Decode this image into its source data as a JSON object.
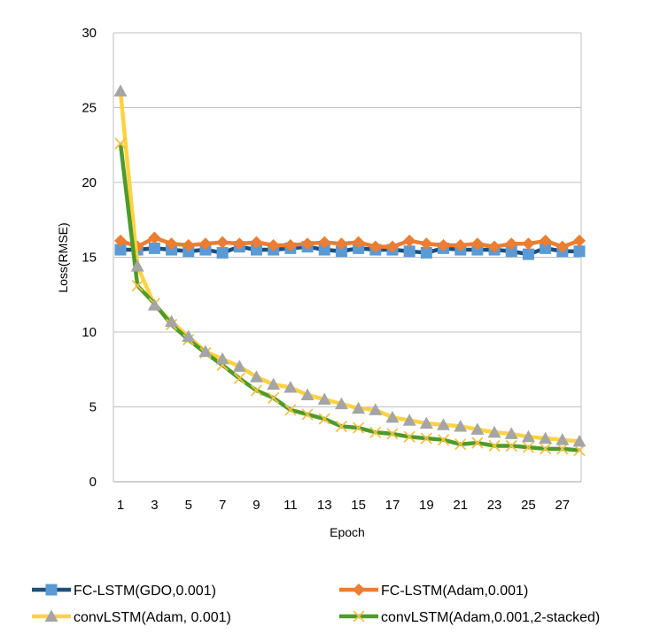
{
  "chart_data": {
    "type": "line",
    "title": "",
    "xlabel": "Epoch",
    "ylabel": "Loss(RMSE)",
    "ylim": [
      0,
      30
    ],
    "yticks": [
      0,
      5,
      10,
      15,
      20,
      25,
      30
    ],
    "xlim": [
      1,
      28
    ],
    "xtick_labels": [
      "1",
      "3",
      "5",
      "7",
      "9",
      "11",
      "13",
      "15",
      "17",
      "19",
      "21",
      "23",
      "25",
      "27"
    ],
    "grid": "horizontal",
    "legend_position": "bottom",
    "colors": {
      "fc_gdo_line": "#1f4e79",
      "fc_gdo_marker": "#5b9bd5",
      "fc_adam": "#ed7d31",
      "conv_adam_line": "#ffd23f",
      "conv_adam_marker": "#a5a5a5",
      "conv_stacked_line": "#4e9a2a",
      "conv_stacked_marker": "#f5c242"
    },
    "series": [
      {
        "name": "FC-LSTM(GDO,0.001)",
        "marker": "square",
        "values": [
          15.5,
          15.5,
          15.6,
          15.5,
          15.4,
          15.5,
          15.3,
          15.7,
          15.5,
          15.5,
          15.6,
          15.7,
          15.5,
          15.4,
          15.6,
          15.5,
          15.5,
          15.4,
          15.3,
          15.6,
          15.5,
          15.5,
          15.5,
          15.4,
          15.2,
          15.6,
          15.4,
          15.4
        ]
      },
      {
        "name": "FC-LSTM(Adam,0.001)",
        "marker": "diamond",
        "values": [
          16.1,
          15.7,
          16.3,
          15.9,
          15.8,
          15.9,
          16.0,
          15.9,
          16.0,
          15.8,
          15.8,
          15.9,
          16.0,
          15.9,
          16.0,
          15.7,
          15.7,
          16.1,
          15.9,
          15.8,
          15.8,
          15.9,
          15.7,
          15.9,
          15.9,
          16.1,
          15.7,
          16.1
        ]
      },
      {
        "name": "convLSTM(Adam, 0.001)",
        "marker": "triangle",
        "values": [
          26.1,
          14.4,
          11.8,
          10.7,
          9.7,
          8.7,
          8.2,
          7.7,
          7.0,
          6.5,
          6.3,
          5.8,
          5.5,
          5.2,
          4.9,
          4.8,
          4.3,
          4.1,
          3.9,
          3.8,
          3.7,
          3.5,
          3.3,
          3.2,
          3.0,
          2.9,
          2.8,
          2.7
        ]
      },
      {
        "name": "convLSTM(Adam,0.001,2-stacked)",
        "marker": "x",
        "values": [
          22.6,
          13.1,
          11.9,
          10.5,
          9.5,
          8.6,
          7.8,
          6.9,
          6.1,
          5.6,
          4.8,
          4.5,
          4.2,
          3.7,
          3.6,
          3.3,
          3.2,
          3.0,
          2.9,
          2.8,
          2.5,
          2.6,
          2.4,
          2.4,
          2.3,
          2.2,
          2.2,
          2.1
        ]
      }
    ]
  }
}
